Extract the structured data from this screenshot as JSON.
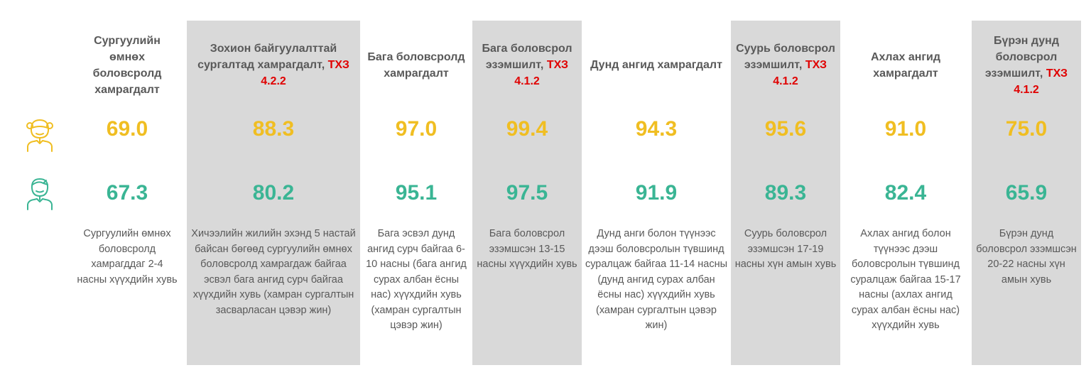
{
  "colors": {
    "girl": "#f0be22",
    "boy": "#3ab594",
    "reference": "#e00000",
    "text": "#595959",
    "shade": "#d9d9d9"
  },
  "legend": {
    "girl_icon": "girl-icon",
    "boy_icon": "boy-icon"
  },
  "columns": [
    {
      "title": "Сургуулийн өмнөх боловсролд хамрагдалт",
      "ref": "",
      "girl": "69.0",
      "boy": "67.3",
      "description": "Сургуулийн өмнөх боловсролд хамрагддаг 2-4 насны хүүхдийн хувь"
    },
    {
      "title": "Зохион байгуулалттай сургалтад хамрагдалт,",
      "ref": "ТХЗ 4.2.2",
      "girl": "88.3",
      "boy": "80.2",
      "description": "Хичээлийн жилийн эхэнд 5 настай байсан бөгөөд сургуулийн өмнөх боловсролд хамрагдаж байгаа эсвэл бага ангид сурч байгаа хүүхдийн хувь (хамран сургалтын засварласан цэвэр жин)"
    },
    {
      "title": "Бага боловсролд хамрагдалт",
      "ref": "",
      "girl": "97.0",
      "boy": "95.1",
      "description": "Бага эсвэл дунд ангид сурч байгаа 6-10 насны (бага ангид сурах албан ёсны нас) хүүхдийн хувь (хамран сургалтын цэвэр жин)"
    },
    {
      "title": "Бага боловсрол эзэмшилт,",
      "ref": "ТХЗ 4.1.2",
      "girl": "99.4",
      "boy": "97.5",
      "description": "Бага боловсрол эзэмшсэн 13-15 насны хүүхдийн хувь"
    },
    {
      "title": "Дунд ангид хамрагдалт",
      "ref": "",
      "girl": "94.3",
      "boy": "91.9",
      "description": "Дунд анги болон түүнээс дээш боловсролын түвшинд суралцаж байгаа 11-14 насны (дунд ангид сурах албан ёсны нас) хүүхдийн хувь (хамран сургалтын цэвэр жин)"
    },
    {
      "title": "Суурь боловсрол эзэмшилт,",
      "ref": "ТХЗ 4.1.2",
      "girl": "95.6",
      "boy": "89.3",
      "description": "Суурь боловсрол эзэмшсэн 17-19 насны хүн амын хувь"
    },
    {
      "title": "Ахлах ангид хамрагдалт",
      "ref": "",
      "girl": "91.0",
      "boy": "82.4",
      "description": "Ахлах ангид болон түүнээс дээш боловсролын түвшинд суралцаж байгаа 15-17 насны (ахлах ангид сурах албан ёсны нас) хүүхдийн хувь"
    },
    {
      "title": "Бүрэн дунд боловсрол эзэмшилт,",
      "ref": "ТХЗ 4.1.2",
      "girl": "75.0",
      "boy": "65.9",
      "description": "Бүрэн дунд боловсрол эзэмшсэн 20-22 насны хүн амын хувь"
    }
  ]
}
